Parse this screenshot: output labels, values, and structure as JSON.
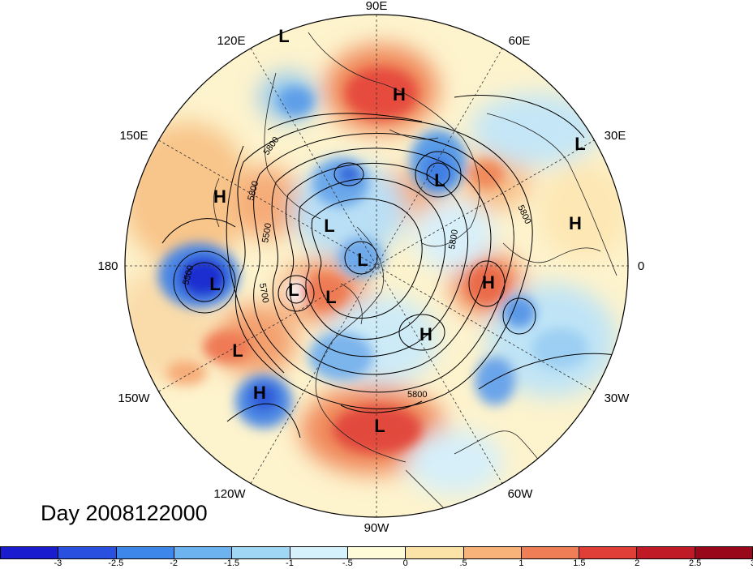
{
  "title": "Day 2008122000",
  "longitude_labels": [
    "90E",
    "60E",
    "30E",
    "0",
    "30W",
    "60W",
    "90W",
    "120W",
    "150W",
    "180",
    "150E",
    "120E"
  ],
  "contour_labels": [
    "5800",
    "5800",
    "5500",
    "5500",
    "5700",
    "5800",
    "5800",
    "5800"
  ],
  "pressure_centers": [
    {
      "type": "L",
      "lon": 130,
      "lat": 62
    },
    {
      "type": "H",
      "lon": 90,
      "lat": 52
    },
    {
      "type": "L",
      "lon": 40,
      "lat": 50
    },
    {
      "type": "L",
      "lon": 40,
      "lat": 25
    },
    {
      "type": "H",
      "lon": 8,
      "lat": 38
    },
    {
      "type": "L",
      "lon": 105,
      "lat": 68
    },
    {
      "type": "H",
      "lon": 140,
      "lat": 40
    },
    {
      "type": "L",
      "lon": 160,
      "lat": 60
    },
    {
      "type": "L",
      "lon": 140,
      "lat": 78
    },
    {
      "type": "L",
      "lon": -178,
      "lat": 28
    },
    {
      "type": "L",
      "lon": 160,
      "lat": 72
    },
    {
      "type": "H",
      "lon": 170,
      "lat": 70
    },
    {
      "type": "H",
      "lon": -10,
      "lat": 50
    },
    {
      "type": "L",
      "lon": -60,
      "lat": 64
    },
    {
      "type": "H",
      "lon": -155,
      "lat": 38
    },
    {
      "type": "L",
      "lon": -143,
      "lat": 30
    },
    {
      "type": "H",
      "lon": -90,
      "lat": 38
    }
  ],
  "colorbar": {
    "colors": [
      "#1a1ccf",
      "#2a50e0",
      "#3d86ea",
      "#6cb3f0",
      "#9fd7f5",
      "#d5f1fb",
      "#fdfbd8",
      "#fbe2a6",
      "#f7b37a",
      "#ef7e56",
      "#df3f37",
      "#c01a26",
      "#99071b"
    ],
    "labels": [
      "-3",
      "-2.5",
      "-2",
      "-1.5",
      "-1",
      "-.5",
      "0",
      ".5",
      "1",
      "1.5",
      "2",
      "2.5",
      "3"
    ]
  }
}
